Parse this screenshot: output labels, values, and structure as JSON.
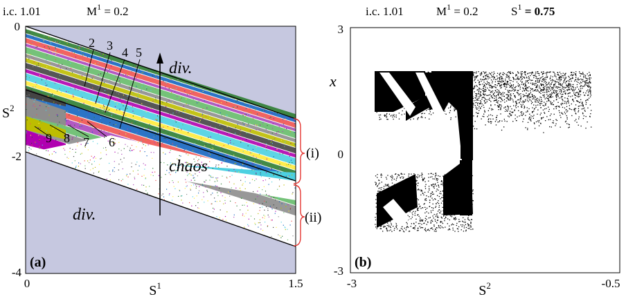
{
  "chart_data": [
    {
      "panel": "(a)",
      "type": "scatter",
      "header": {
        "ic": "i.c.  1.01",
        "m_base": "M",
        "m_sup": "1",
        "m_val": " = 0.2"
      },
      "xlabel_base": "S",
      "xlabel_sup": "1",
      "ylabel_base": "S",
      "ylabel_sup": "2",
      "xlim": [
        0,
        1.5
      ],
      "ylim": [
        -4,
        0
      ],
      "xtick_labels": [
        "0",
        "1.5"
      ],
      "ytick_labels": [
        "0",
        "-2",
        "-4"
      ],
      "background_color": "#c6c8e0",
      "region_labels": {
        "div_top": "div.",
        "div_bottom": "div.",
        "chaos": "chaos",
        "bracket_i": "(i)",
        "bracket_ii": "(ii)"
      },
      "period_labels": [
        "2",
        "3",
        "4",
        "5",
        "6",
        "7",
        "8",
        "9"
      ],
      "period_colors": [
        "#2e7d32",
        "#1565c0",
        "#ef5350",
        "#ab47bc",
        "#66bb6a",
        "#8d8d8d",
        "#bdbd00",
        "#444444",
        "#b000b0",
        "#4dd0e1",
        "#ffeb3b"
      ]
    },
    {
      "panel": "(b)",
      "type": "scatter",
      "header": {
        "ic": "i.c.  1.01",
        "m_base": "M",
        "m_sup": "1",
        "m_val": " = 0.2",
        "s_base": "S",
        "s_sup": "1",
        "s_val": " = 0.75"
      },
      "xlabel_base": "S",
      "xlabel_sup": "2",
      "ylabel": "x",
      "xlim": [
        -3,
        -0.5
      ],
      "ylim": [
        -3,
        3
      ],
      "xtick_labels": [
        "-3",
        "-0.5"
      ],
      "ytick_labels": [
        "3",
        "0",
        "-3"
      ],
      "point_color": "#000000"
    }
  ]
}
